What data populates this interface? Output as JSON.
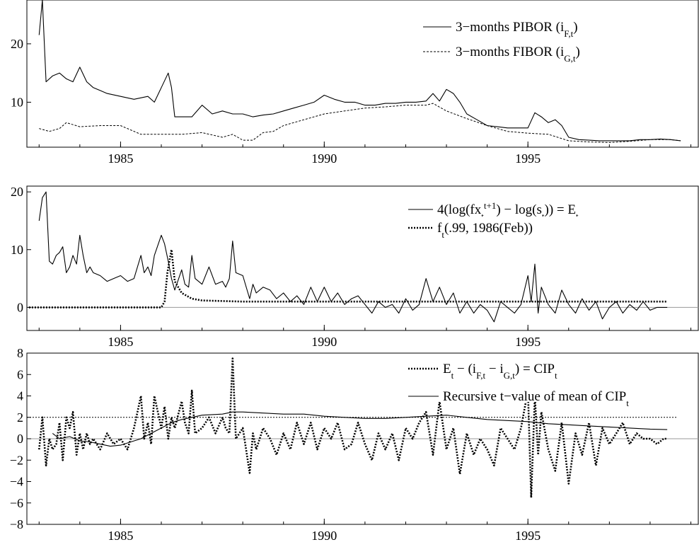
{
  "chart_data": [
    {
      "type": "line",
      "title": "",
      "xlabel": "",
      "ylabel": "",
      "xlim": [
        1982.7,
        1999.2
      ],
      "ylim": [
        2.3,
        27.5
      ],
      "x_ticks": [
        1985,
        1990,
        1995
      ],
      "x_tick_labels": [
        "1985",
        "1990",
        "1995"
      ],
      "y_ticks": [
        10,
        20
      ],
      "y_tick_labels": [
        "10",
        "20"
      ],
      "grid": false,
      "legend_position": "top-right",
      "series": [
        {
          "name": "3−months PIBOR (i_{F,t})",
          "style": "solid",
          "x": [
            1983.0,
            1983.08,
            1983.17,
            1983.33,
            1983.5,
            1983.67,
            1983.83,
            1984.0,
            1984.17,
            1984.33,
            1984.5,
            1984.67,
            1985.0,
            1985.33,
            1985.67,
            1985.83,
            1986.0,
            1986.17,
            1986.25,
            1986.33,
            1986.5,
            1986.75,
            1987.0,
            1987.25,
            1987.5,
            1987.75,
            1988.0,
            1988.25,
            1988.5,
            1988.75,
            1989.0,
            1989.25,
            1989.5,
            1989.75,
            1990.0,
            1990.25,
            1990.5,
            1990.75,
            1991.0,
            1991.25,
            1991.5,
            1991.75,
            1992.0,
            1992.25,
            1992.5,
            1992.67,
            1992.83,
            1993.0,
            1993.17,
            1993.33,
            1993.5,
            1993.75,
            1994.0,
            1994.25,
            1994.5,
            1994.75,
            1995.0,
            1995.17,
            1995.33,
            1995.5,
            1995.67,
            1995.83,
            1996.0,
            1996.25,
            1996.5,
            1996.75,
            1997.0,
            1997.25,
            1997.5,
            1997.75,
            1998.0,
            1998.25,
            1998.5,
            1998.75
          ],
          "y": [
            21.5,
            27.5,
            13.5,
            14.5,
            15.0,
            14.0,
            13.5,
            16.0,
            13.5,
            12.5,
            12.0,
            11.5,
            11.0,
            10.5,
            11.0,
            10.0,
            12.5,
            15.0,
            12.5,
            7.5,
            7.5,
            7.5,
            9.5,
            8.0,
            8.5,
            8.0,
            8.0,
            7.5,
            7.8,
            8.0,
            8.5,
            9.0,
            9.5,
            10.0,
            11.2,
            10.5,
            10.0,
            10.0,
            9.5,
            9.5,
            9.8,
            9.8,
            10.0,
            10.0,
            10.2,
            11.5,
            10.2,
            12.2,
            11.5,
            10.0,
            8.0,
            7.0,
            6.0,
            5.8,
            5.6,
            5.6,
            5.6,
            8.2,
            7.5,
            6.5,
            7.0,
            6.0,
            4.0,
            3.6,
            3.5,
            3.4,
            3.4,
            3.4,
            3.4,
            3.6,
            3.6,
            3.7,
            3.6,
            3.4
          ]
        },
        {
          "name": "3−months FIBOR (i_{G,t})",
          "style": "dashed",
          "x": [
            1983.0,
            1983.25,
            1983.5,
            1983.67,
            1984.0,
            1984.5,
            1985.0,
            1985.5,
            1986.0,
            1986.5,
            1987.0,
            1987.5,
            1987.75,
            1988.0,
            1988.25,
            1988.5,
            1988.75,
            1989.0,
            1989.25,
            1989.5,
            1990.0,
            1990.5,
            1991.0,
            1991.5,
            1992.0,
            1992.5,
            1992.67,
            1993.0,
            1993.5,
            1994.0,
            1994.5,
            1995.0,
            1995.5,
            1996.0,
            1996.5,
            1997.0,
            1997.5,
            1998.0,
            1998.5,
            1998.75
          ],
          "y": [
            5.5,
            5.0,
            5.5,
            6.5,
            5.8,
            6.0,
            6.0,
            4.5,
            4.5,
            4.5,
            4.8,
            4.0,
            4.5,
            3.5,
            3.5,
            4.8,
            5.0,
            6.0,
            6.5,
            7.0,
            8.0,
            8.5,
            9.0,
            9.2,
            9.5,
            9.5,
            9.8,
            8.5,
            7.2,
            6.0,
            5.0,
            4.7,
            4.5,
            3.4,
            3.2,
            3.1,
            3.3,
            3.6,
            3.6,
            3.4
          ]
        }
      ]
    },
    {
      "type": "line",
      "title": "",
      "xlabel": "",
      "ylabel": "",
      "xlim": [
        1982.7,
        1999.2
      ],
      "ylim": [
        -4,
        21
      ],
      "x_ticks": [
        1985,
        1990,
        1995
      ],
      "x_tick_labels": [
        "1985",
        "1990",
        "1995"
      ],
      "y_ticks": [
        0,
        10,
        20
      ],
      "y_tick_labels": [
        "0",
        "10",
        "20"
      ],
      "zero_line": true,
      "grid": false,
      "legend_position": "top-right",
      "series": [
        {
          "name": "4(log(fx_t^{t+1}) − log(s_t)) = E_t",
          "style": "solid",
          "x": [
            1983.0,
            1983.08,
            1983.17,
            1983.25,
            1983.33,
            1983.42,
            1983.5,
            1983.58,
            1983.67,
            1983.75,
            1983.83,
            1983.92,
            1984.0,
            1984.08,
            1984.17,
            1984.25,
            1984.33,
            1984.5,
            1984.67,
            1984.83,
            1985.0,
            1985.17,
            1985.33,
            1985.5,
            1985.58,
            1985.67,
            1985.75,
            1985.83,
            1986.0,
            1986.08,
            1986.17,
            1986.25,
            1986.33,
            1986.5,
            1986.58,
            1986.67,
            1986.75,
            1986.83,
            1987.0,
            1987.17,
            1987.33,
            1987.5,
            1987.58,
            1987.67,
            1987.75,
            1987.83,
            1988.0,
            1988.17,
            1988.25,
            1988.33,
            1988.5,
            1988.67,
            1988.83,
            1989.0,
            1989.17,
            1989.33,
            1989.5,
            1989.67,
            1989.83,
            1990.0,
            1990.17,
            1990.33,
            1990.5,
            1990.67,
            1990.83,
            1991.0,
            1991.17,
            1991.33,
            1991.5,
            1991.67,
            1991.83,
            1992.0,
            1992.17,
            1992.33,
            1992.5,
            1992.67,
            1992.83,
            1993.0,
            1993.17,
            1993.33,
            1993.5,
            1993.67,
            1993.83,
            1994.0,
            1994.17,
            1994.33,
            1994.5,
            1994.67,
            1994.83,
            1995.0,
            1995.08,
            1995.17,
            1995.25,
            1995.33,
            1995.5,
            1995.67,
            1995.83,
            1996.0,
            1996.17,
            1996.33,
            1996.5,
            1996.67,
            1996.83,
            1997.0,
            1997.17,
            1997.33,
            1997.5,
            1997.67,
            1997.83,
            1998.0,
            1998.17,
            1998.33,
            1998.42
          ],
          "y": [
            15,
            19,
            20,
            8,
            7.5,
            9,
            9.5,
            10.5,
            6,
            7,
            9,
            7.5,
            12.5,
            9,
            6,
            7,
            6,
            5.5,
            4.5,
            5,
            5.5,
            4.5,
            5,
            9,
            6,
            7,
            5.5,
            9,
            12.5,
            11,
            8,
            5,
            3,
            6.5,
            4,
            3.5,
            9,
            5,
            4,
            7,
            4,
            4.5,
            3.5,
            5,
            11.5,
            6,
            5.5,
            1.5,
            4,
            2.5,
            3.5,
            3,
            1.5,
            2.5,
            1,
            2,
            0.5,
            3.5,
            1,
            3.5,
            1,
            2.5,
            0.5,
            1.5,
            2,
            0.5,
            -1,
            1,
            0,
            0.5,
            -1,
            1.5,
            -0.5,
            0.5,
            5,
            1,
            3.5,
            0.5,
            2.5,
            -1,
            1,
            -1,
            0.5,
            -0.5,
            -2.5,
            1,
            0,
            -1,
            0.5,
            5.5,
            1,
            7.5,
            -1,
            3.5,
            0.5,
            -1,
            3,
            0.5,
            -1,
            1.5,
            -0.5,
            1,
            -2,
            0,
            1,
            -1,
            0.5,
            -0.5,
            1,
            -0.5,
            0,
            0,
            0
          ]
        },
        {
          "name": "f_t(.99, 1986(Feb))",
          "style": "dotted",
          "x": [
            1982.75,
            1986.0,
            1986.08,
            1986.15,
            1986.25,
            1986.33,
            1986.5,
            1986.75,
            1987.0,
            1987.5,
            1988.0,
            1990.0,
            1995.0,
            1998.42
          ],
          "y": [
            0,
            0,
            1,
            6,
            10,
            4.5,
            2.5,
            1.5,
            1.2,
            1.1,
            1.0,
            1.0,
            1.0,
            1.0
          ]
        }
      ]
    },
    {
      "type": "line",
      "title": "",
      "xlabel": "",
      "ylabel": "",
      "xlim": [
        1982.7,
        1999.2
      ],
      "ylim": [
        -8,
        8
      ],
      "x_ticks": [
        1985,
        1990,
        1995
      ],
      "x_tick_labels": [
        "1985",
        "1990",
        "1995"
      ],
      "y_ticks": [
        -8,
        -6,
        -4,
        -2,
        0,
        2,
        4,
        6,
        8
      ],
      "y_tick_labels": [
        "−8",
        "−6",
        "−4",
        "−2",
        "0",
        "2",
        "4",
        "6",
        "8"
      ],
      "zero_line": true,
      "reference_line": 2,
      "grid": false,
      "legend_position": "top-right",
      "series": [
        {
          "name": "E_t − (i_{F,t} − i_{G,t}) = CIP_t",
          "style": "dotted",
          "x": [
            1983.0,
            1983.08,
            1983.17,
            1983.25,
            1983.33,
            1983.42,
            1983.5,
            1983.58,
            1983.67,
            1983.75,
            1983.83,
            1983.92,
            1984.0,
            1984.08,
            1984.17,
            1984.25,
            1984.33,
            1984.5,
            1984.67,
            1984.83,
            1985.0,
            1985.17,
            1985.33,
            1985.5,
            1985.58,
            1985.67,
            1985.75,
            1985.83,
            1986.0,
            1986.08,
            1986.17,
            1986.25,
            1986.33,
            1986.5,
            1986.58,
            1986.67,
            1986.75,
            1986.83,
            1987.0,
            1987.17,
            1987.33,
            1987.5,
            1987.58,
            1987.67,
            1987.75,
            1987.83,
            1988.0,
            1988.17,
            1988.25,
            1988.33,
            1988.5,
            1988.67,
            1988.83,
            1989.0,
            1989.17,
            1989.33,
            1989.5,
            1989.67,
            1989.83,
            1990.0,
            1990.17,
            1990.33,
            1990.5,
            1990.67,
            1990.83,
            1991.0,
            1991.17,
            1991.33,
            1991.5,
            1991.67,
            1991.83,
            1992.0,
            1992.17,
            1992.33,
            1992.5,
            1992.67,
            1992.83,
            1993.0,
            1993.17,
            1993.33,
            1993.5,
            1993.67,
            1993.83,
            1994.0,
            1994.17,
            1994.33,
            1994.5,
            1994.67,
            1994.83,
            1995.0,
            1995.08,
            1995.17,
            1995.25,
            1995.33,
            1995.5,
            1995.67,
            1995.83,
            1996.0,
            1996.17,
            1996.33,
            1996.5,
            1996.67,
            1996.83,
            1997.0,
            1997.17,
            1997.33,
            1997.5,
            1997.67,
            1997.83,
            1998.0,
            1998.17,
            1998.33,
            1998.42
          ],
          "y": [
            -1,
            2,
            -2.5,
            0,
            -1,
            -0.5,
            1.5,
            -2,
            2,
            1,
            2.5,
            -1.5,
            0.5,
            -1,
            0.5,
            -0.5,
            0,
            -1,
            0.5,
            -0.5,
            0,
            -1,
            1,
            4,
            0,
            1.5,
            -0.5,
            4,
            1,
            3,
            0,
            2,
            1,
            3.5,
            1.5,
            0.5,
            4.5,
            0.5,
            1,
            2,
            0.5,
            2,
            1,
            0.5,
            7.5,
            0,
            1,
            -3.2,
            0.5,
            -1,
            1,
            0,
            -1.5,
            0.5,
            -1,
            1.5,
            -0.5,
            1.5,
            -1,
            1,
            0,
            1.5,
            -1,
            -0.5,
            1.5,
            -0.5,
            -2,
            0.5,
            -1,
            0.5,
            -2,
            1,
            0,
            1.5,
            2.5,
            -1.5,
            3.5,
            -1,
            1,
            -3.3,
            0.5,
            -1.5,
            0,
            -1,
            -2.5,
            1,
            0,
            -1,
            1,
            4.5,
            -5.5,
            4,
            -1.5,
            2.5,
            -1,
            -3,
            1.5,
            -4.2,
            0.5,
            -1.5,
            1.5,
            -2.5,
            1,
            -0.5,
            0.5,
            1.5,
            -0.5,
            0.5,
            0,
            0,
            -0.5,
            0,
            0
          ]
        },
        {
          "name": "Recursive t−value of mean of CIP_t",
          "style": "solid",
          "x": [
            1983.33,
            1983.5,
            1983.75,
            1984.0,
            1984.25,
            1984.5,
            1984.75,
            1985.0,
            1985.25,
            1985.5,
            1985.75,
            1986.0,
            1986.25,
            1986.5,
            1986.75,
            1987.0,
            1987.5,
            1987.75,
            1988.0,
            1988.5,
            1989.0,
            1989.5,
            1990.0,
            1990.5,
            1991.0,
            1991.5,
            1992.0,
            1992.5,
            1993.0,
            1993.5,
            1994.0,
            1994.5,
            1995.0,
            1995.5,
            1996.0,
            1996.5,
            1997.0,
            1997.5,
            1998.0,
            1998.42
          ],
          "y": [
            0.5,
            0,
            0.2,
            -0.2,
            -0.3,
            -0.5,
            -0.7,
            -0.6,
            -0.3,
            0,
            0.5,
            1,
            1.5,
            1.8,
            2,
            2.2,
            2.3,
            2.5,
            2.5,
            2.4,
            2.3,
            2.3,
            2.1,
            2,
            1.9,
            1.9,
            2,
            2.1,
            2.2,
            2,
            1.8,
            1.7,
            1.6,
            1.4,
            1.3,
            1.2,
            1.1,
            1,
            0.9,
            0.85
          ]
        }
      ]
    }
  ]
}
